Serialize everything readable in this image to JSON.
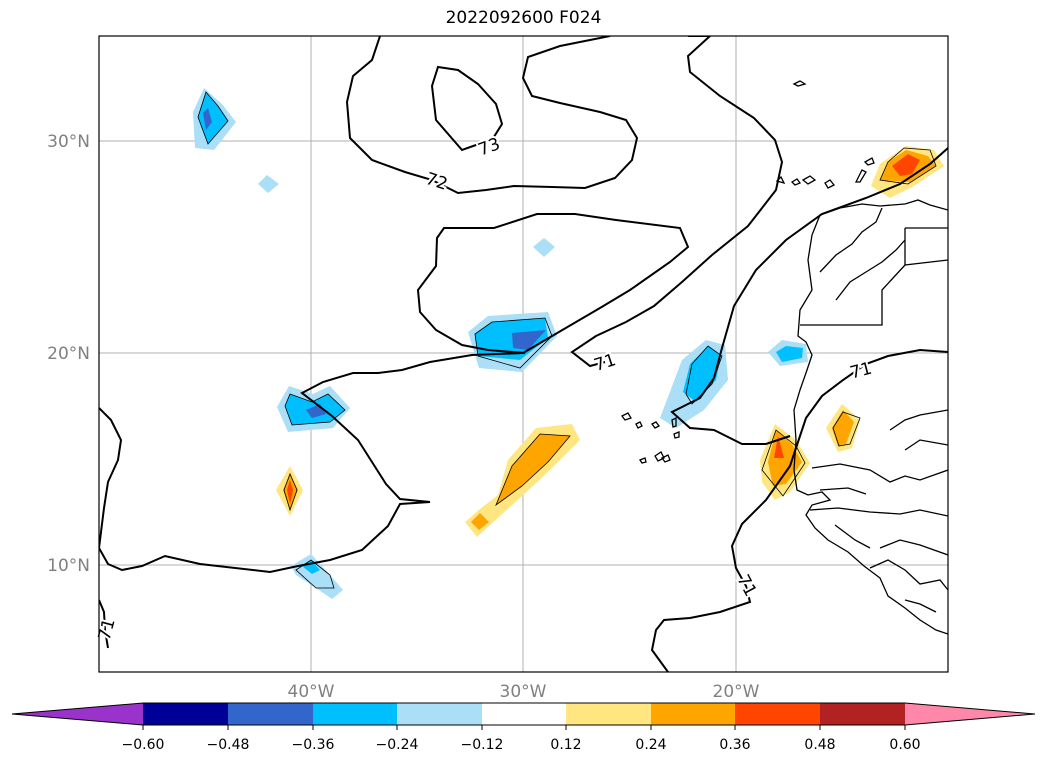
{
  "title": "2022092600 F024",
  "latitude_labels": [
    "30°N",
    "20°N",
    "10°N"
  ],
  "longitude_labels": [
    "40°W",
    "30°W",
    "20°W"
  ],
  "contour_labels": [
    "73",
    "72",
    "71",
    "71",
    "71",
    "71"
  ],
  "colorbar": {
    "colors": [
      "#9933cc",
      "#000099",
      "#3366cc",
      "#00bfff",
      "#aadff7",
      "#ffffff",
      "#ffe680",
      "#ffa500",
      "#ff4500",
      "#b22222",
      "#ff88aa"
    ],
    "tick_labels": [
      "−0.60",
      "−0.48",
      "−0.36",
      "−0.24",
      "−0.12",
      "0.12",
      "0.24",
      "0.36",
      "0.48",
      "0.60"
    ]
  }
}
